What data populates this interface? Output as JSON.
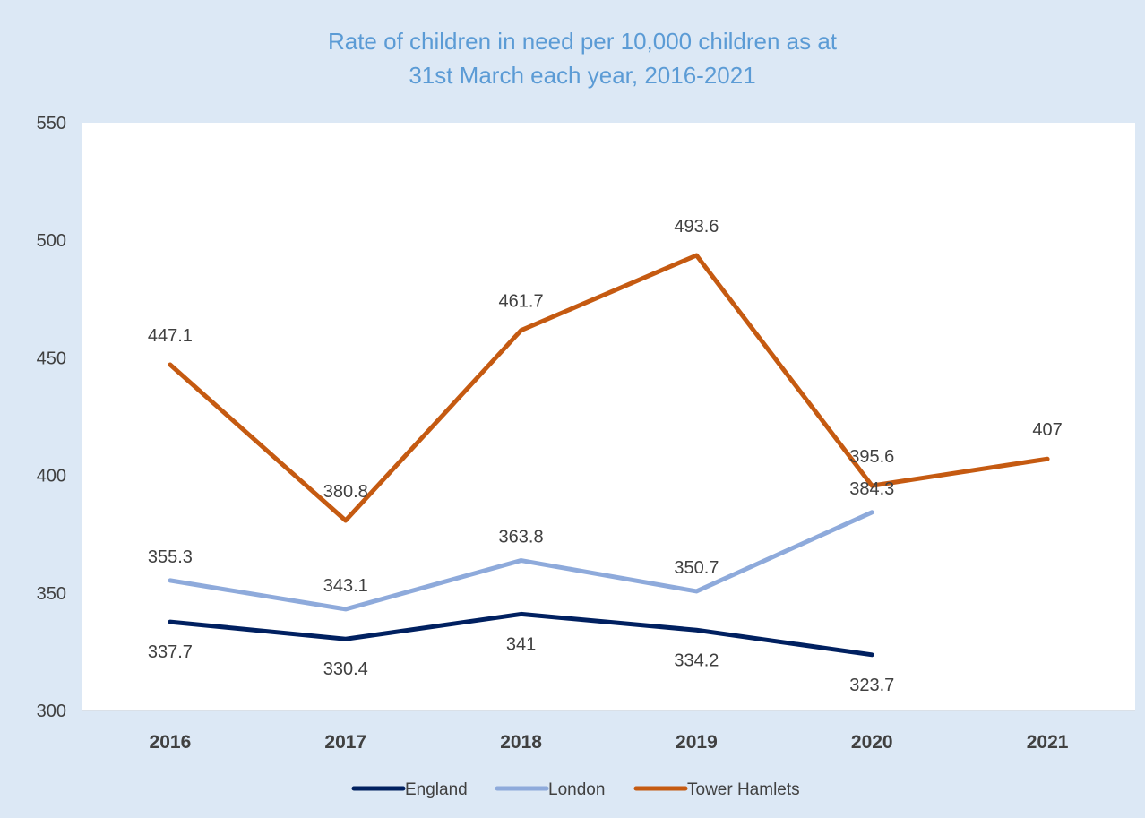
{
  "chart_data": {
    "type": "line",
    "title_lines": [
      "Rate of children in need per 10,000 children as at",
      "31st March each year, 2016-2021"
    ],
    "xlabel": "",
    "ylabel": "",
    "ylim": [
      300,
      550
    ],
    "yticks": [
      300,
      350,
      400,
      450,
      500,
      550
    ],
    "categories": [
      "2016",
      "2017",
      "2018",
      "2019",
      "2020",
      "2021"
    ],
    "grid": false,
    "legend_position": "bottom",
    "series": [
      {
        "name": "England",
        "color": "#002060",
        "values": [
          337.7,
          330.4,
          341,
          334.2,
          323.7,
          null
        ],
        "labels": [
          "337.7",
          "330.4",
          "341",
          "334.2",
          "323.7",
          null
        ]
      },
      {
        "name": "London",
        "color": "#8eaadb",
        "values": [
          355.3,
          343.1,
          363.8,
          350.7,
          384.3,
          null
        ],
        "labels": [
          "355.3",
          "343.1",
          "363.8",
          "350.7",
          "384.3",
          null
        ]
      },
      {
        "name": "Tower Hamlets",
        "color": "#c55a11",
        "values": [
          447.1,
          380.8,
          461.7,
          493.6,
          395.6,
          407
        ],
        "labels": [
          "447.1",
          "380.8",
          "461.7",
          "493.6",
          "395.6",
          "407"
        ]
      }
    ]
  }
}
